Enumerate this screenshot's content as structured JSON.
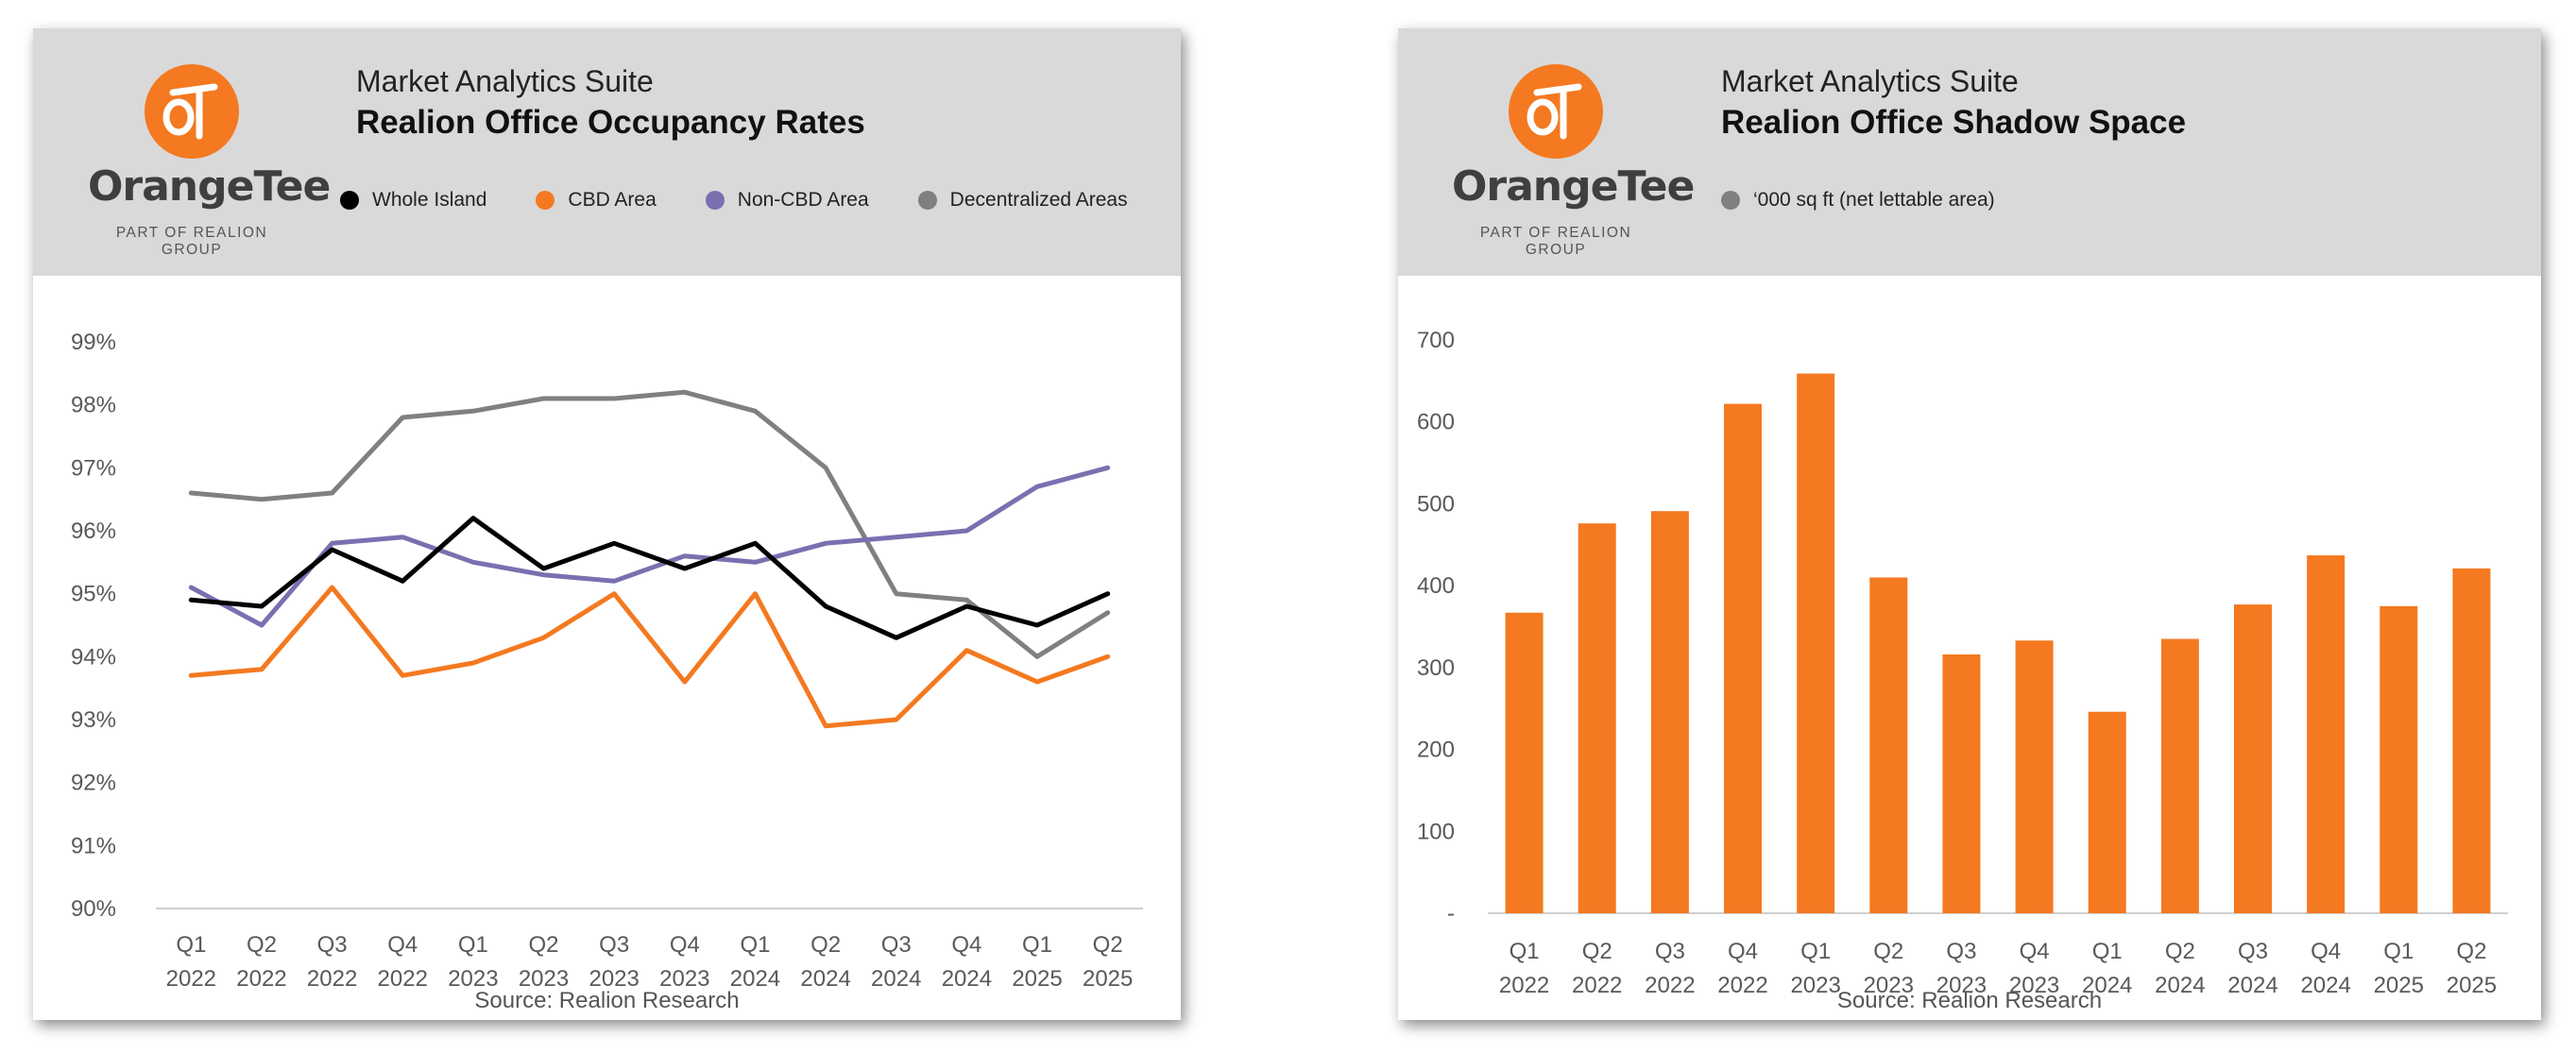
{
  "panels": [
    {
      "suite": "Market Analytics Suite",
      "title": "Realion Office Occupancy Rates",
      "logo_word": "OrangeTee",
      "logo_sub": "PART OF REALION GROUP",
      "source": "Source: Realion Research"
    },
    {
      "suite": "Market Analytics Suite",
      "title": "Realion Office Shadow Space",
      "logo_word": "OrangeTee",
      "logo_sub": "PART OF REALION GROUP",
      "source": "Source: Realion Research"
    }
  ],
  "chart_data": [
    {
      "type": "line",
      "title": "Realion Office Occupancy Rates",
      "categories": [
        [
          "Q1",
          "2022"
        ],
        [
          "Q2",
          "2022"
        ],
        [
          "Q3",
          "2022"
        ],
        [
          "Q4",
          "2022"
        ],
        [
          "Q1",
          "2023"
        ],
        [
          "Q2",
          "2023"
        ],
        [
          "Q3",
          "2023"
        ],
        [
          "Q4",
          "2023"
        ],
        [
          "Q1",
          "2024"
        ],
        [
          "Q2",
          "2024"
        ],
        [
          "Q3",
          "2024"
        ],
        [
          "Q4",
          "2024"
        ],
        [
          "Q1",
          "2025"
        ],
        [
          "Q2",
          "2025"
        ]
      ],
      "ylim": [
        90,
        99
      ],
      "yticks": [
        "90%",
        "91%",
        "92%",
        "93%",
        "94%",
        "95%",
        "96%",
        "97%",
        "98%",
        "99%"
      ],
      "legend_position": "top",
      "series": [
        {
          "name": "Whole Island",
          "color": "#000000",
          "values": [
            94.9,
            94.8,
            95.7,
            95.2,
            96.2,
            95.4,
            95.8,
            95.4,
            95.8,
            94.8,
            94.3,
            94.8,
            94.5,
            95.0
          ]
        },
        {
          "name": "CBD Area",
          "color": "#f47920",
          "values": [
            93.7,
            93.8,
            95.1,
            93.7,
            93.9,
            94.3,
            95.0,
            93.6,
            95.0,
            92.9,
            93.0,
            94.1,
            93.6,
            94.0
          ]
        },
        {
          "name": "Non-CBD Area",
          "color": "#7b6fb0",
          "values": [
            95.1,
            94.5,
            95.8,
            95.9,
            95.5,
            95.3,
            95.2,
            95.6,
            95.5,
            95.8,
            95.9,
            96.0,
            96.7,
            97.0
          ]
        },
        {
          "name": "Decentralized Areas",
          "color": "#808080",
          "values": [
            96.6,
            96.5,
            96.6,
            97.8,
            97.9,
            98.1,
            98.1,
            98.2,
            97.9,
            97.0,
            95.0,
            94.9,
            94.0,
            94.7
          ]
        }
      ]
    },
    {
      "type": "bar",
      "title": "Realion Office Shadow Space",
      "categories": [
        [
          "Q1",
          "2022"
        ],
        [
          "Q2",
          "2022"
        ],
        [
          "Q3",
          "2022"
        ],
        [
          "Q4",
          "2022"
        ],
        [
          "Q1",
          "2023"
        ],
        [
          "Q2",
          "2023"
        ],
        [
          "Q3",
          "2023"
        ],
        [
          "Q4",
          "2023"
        ],
        [
          "Q1",
          "2024"
        ],
        [
          "Q2",
          "2024"
        ],
        [
          "Q3",
          "2024"
        ],
        [
          "Q4",
          "2024"
        ],
        [
          "Q1",
          "2025"
        ],
        [
          "Q2",
          "2025"
        ]
      ],
      "ylim": [
        0,
        700
      ],
      "yticks": [
        "-",
        "100",
        "200",
        "300",
        "400",
        "500",
        "600",
        "700"
      ],
      "legend_position": "top",
      "series": [
        {
          "name": "‘000 sq ft (net lettable area)",
          "color": "#f47920",
          "legend_color": "#808080",
          "values": [
            367,
            476,
            491,
            622,
            659,
            410,
            316,
            333,
            246,
            335,
            377,
            437,
            375,
            421
          ]
        }
      ]
    }
  ]
}
